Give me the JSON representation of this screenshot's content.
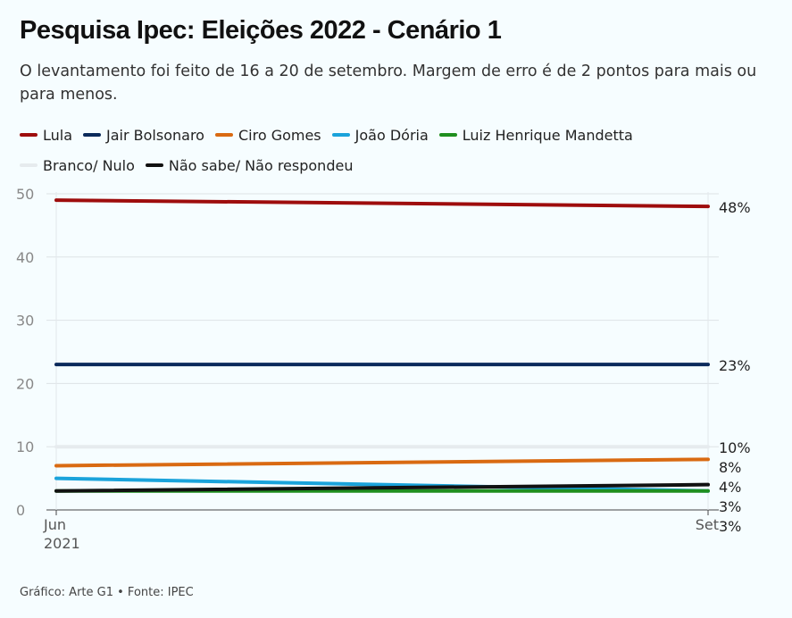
{
  "header": {
    "title": "Pesquisa Ipec: Eleições 2022 - Cenário 1",
    "subtitle": "O levantamento foi feito de 16 a 20 de setembro. Margem de erro é de 2 pontos para mais ou para menos."
  },
  "footer": {
    "source": "Gráfico: Arte G1 • Fonte: IPEC"
  },
  "chart_data": {
    "type": "line",
    "title": "Pesquisa Ipec: Eleições 2022 - Cenário 1",
    "x": [
      "Jun 2021",
      "Set"
    ],
    "x_tick_labels": [
      [
        "Jun",
        "2021"
      ],
      [
        "Set"
      ]
    ],
    "ylim": [
      0,
      50
    ],
    "y_ticks": [
      "0",
      "10",
      "20",
      "30",
      "40",
      "50"
    ],
    "grid": true,
    "legend_placement": "top",
    "series": [
      {
        "name": "Lula",
        "color": "#9e0d0d",
        "values": [
          49,
          48
        ],
        "end_label": "48%"
      },
      {
        "name": "Jair Bolsonaro",
        "color": "#0b2a5b",
        "values": [
          23,
          23
        ],
        "end_label": "23%"
      },
      {
        "name": "Ciro Gomes",
        "color": "#d96a12",
        "values": [
          7,
          8
        ],
        "end_label": "8%"
      },
      {
        "name": "João Dória",
        "color": "#1aa3db",
        "values": [
          5,
          3
        ],
        "end_label": "3%"
      },
      {
        "name": "Luiz Henrique Mandetta",
        "color": "#1f8f1f",
        "values": [
          3,
          3
        ],
        "end_label": "3%"
      },
      {
        "name": "Branco/ Nulo",
        "color": "#e6ebee",
        "values": [
          10,
          10
        ],
        "end_label": "10%"
      },
      {
        "name": "Não sabe/ Não respondeu",
        "color": "#111111",
        "values": [
          3,
          4
        ],
        "end_label": "4%"
      }
    ]
  }
}
